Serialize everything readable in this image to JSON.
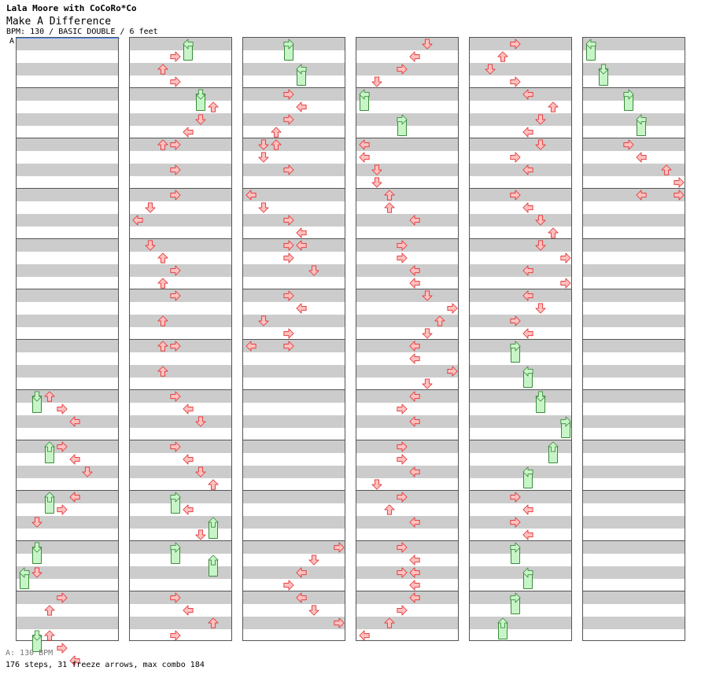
{
  "header": {
    "title": "Lala Moore with CoCoRo*Co",
    "song": "Make A Difference",
    "info": "BPM: 130 / BASIC DOUBLE / 6 feet",
    "bpm_marker": "A"
  },
  "footer": {
    "bpm_line": "A: 130 BPM",
    "stats": "176 steps, 31 freeze arrows, max combo 184"
  },
  "colors": {
    "arrow_fill": "#ffc0c0",
    "arrow_stroke": "#e03030",
    "freeze_fill": "#c8f5c8",
    "freeze_stroke": "#3a8a3a",
    "stripe_gray": "#cccccc",
    "bpm_marker": "#4a8cff"
  },
  "chart": {
    "lanes": [
      "left",
      "down",
      "up",
      "right",
      "left",
      "down",
      "up",
      "right"
    ],
    "measures_per_column": 12,
    "rows_per_measure": 4,
    "columns": [
      [
        [
          28,
          1,
          "f"
        ],
        [
          28,
          2,
          "a"
        ],
        [
          29,
          3,
          "a"
        ],
        [
          30,
          4,
          "a"
        ],
        [
          32,
          2,
          "f"
        ],
        [
          32,
          3,
          "a"
        ],
        [
          33,
          4,
          "a"
        ],
        [
          34,
          5,
          "a"
        ],
        [
          36,
          2,
          "f"
        ],
        [
          36,
          4,
          "a"
        ],
        [
          37,
          3,
          "a"
        ],
        [
          38,
          1,
          "a"
        ],
        [
          40,
          1,
          "f"
        ],
        [
          42,
          0,
          "f"
        ],
        [
          42,
          1,
          "a"
        ],
        [
          44,
          3,
          "a"
        ],
        [
          45,
          2,
          "a"
        ],
        [
          47,
          1,
          "f"
        ],
        [
          47,
          2,
          "a"
        ],
        [
          48,
          3,
          "a"
        ],
        [
          49,
          4,
          "a"
        ]
      ],
      [
        [
          0,
          4,
          "f"
        ],
        [
          1,
          3,
          "a"
        ],
        [
          2,
          2,
          "a"
        ],
        [
          3,
          3,
          "a"
        ],
        [
          4,
          5,
          "f"
        ],
        [
          5,
          6,
          "a"
        ],
        [
          6,
          5,
          "a"
        ],
        [
          7,
          4,
          "a"
        ],
        [
          8,
          2,
          "a"
        ],
        [
          8,
          3,
          "a"
        ],
        [
          10,
          3,
          "a"
        ],
        [
          12,
          3,
          "a"
        ],
        [
          13,
          1,
          "a"
        ],
        [
          14,
          0,
          "a"
        ],
        [
          16,
          1,
          "a"
        ],
        [
          17,
          2,
          "a"
        ],
        [
          18,
          3,
          "a"
        ],
        [
          19,
          2,
          "a"
        ],
        [
          20,
          3,
          "a"
        ],
        [
          22,
          2,
          "a"
        ],
        [
          24,
          2,
          "a"
        ],
        [
          24,
          3,
          "a"
        ],
        [
          26,
          2,
          "a"
        ],
        [
          28,
          3,
          "a"
        ],
        [
          29,
          4,
          "a"
        ],
        [
          30,
          5,
          "a"
        ],
        [
          32,
          3,
          "a"
        ],
        [
          33,
          4,
          "a"
        ],
        [
          34,
          5,
          "a"
        ],
        [
          35,
          6,
          "a"
        ],
        [
          36,
          3,
          "f"
        ],
        [
          37,
          4,
          "a"
        ],
        [
          38,
          6,
          "f"
        ],
        [
          39,
          5,
          "a"
        ],
        [
          40,
          3,
          "f"
        ],
        [
          41,
          6,
          "f"
        ],
        [
          44,
          3,
          "a"
        ],
        [
          45,
          4,
          "a"
        ],
        [
          46,
          6,
          "a"
        ],
        [
          47,
          3,
          "a"
        ]
      ],
      [
        [
          0,
          3,
          "f"
        ],
        [
          2,
          4,
          "f"
        ],
        [
          4,
          3,
          "a"
        ],
        [
          5,
          4,
          "a"
        ],
        [
          6,
          3,
          "a"
        ],
        [
          7,
          2,
          "a"
        ],
        [
          8,
          1,
          "a"
        ],
        [
          8,
          2,
          "a"
        ],
        [
          9,
          1,
          "a"
        ],
        [
          10,
          3,
          "a"
        ],
        [
          12,
          0,
          "a"
        ],
        [
          13,
          1,
          "a"
        ],
        [
          14,
          3,
          "a"
        ],
        [
          15,
          4,
          "a"
        ],
        [
          16,
          3,
          "a"
        ],
        [
          16,
          4,
          "a"
        ],
        [
          17,
          3,
          "a"
        ],
        [
          18,
          5,
          "a"
        ],
        [
          20,
          3,
          "a"
        ],
        [
          21,
          4,
          "a"
        ],
        [
          22,
          1,
          "a"
        ],
        [
          23,
          3,
          "a"
        ],
        [
          24,
          0,
          "a"
        ],
        [
          24,
          3,
          "a"
        ],
        [
          40,
          7,
          "a"
        ],
        [
          41,
          5,
          "a"
        ],
        [
          42,
          4,
          "a"
        ],
        [
          43,
          3,
          "a"
        ],
        [
          44,
          4,
          "a"
        ],
        [
          45,
          5,
          "a"
        ],
        [
          46,
          7,
          "a"
        ]
      ],
      [
        [
          0,
          5,
          "a"
        ],
        [
          1,
          4,
          "a"
        ],
        [
          2,
          3,
          "a"
        ],
        [
          3,
          1,
          "a"
        ],
        [
          4,
          0,
          "f"
        ],
        [
          6,
          3,
          "f"
        ],
        [
          8,
          0,
          "a"
        ],
        [
          9,
          0,
          "a"
        ],
        [
          10,
          1,
          "a"
        ],
        [
          11,
          1,
          "a"
        ],
        [
          12,
          2,
          "a"
        ],
        [
          13,
          2,
          "a"
        ],
        [
          14,
          4,
          "a"
        ],
        [
          16,
          3,
          "a"
        ],
        [
          17,
          3,
          "a"
        ],
        [
          18,
          4,
          "a"
        ],
        [
          19,
          4,
          "a"
        ],
        [
          20,
          5,
          "a"
        ],
        [
          21,
          7,
          "a"
        ],
        [
          22,
          6,
          "a"
        ],
        [
          23,
          5,
          "a"
        ],
        [
          24,
          4,
          "a"
        ],
        [
          25,
          4,
          "a"
        ],
        [
          26,
          7,
          "a"
        ],
        [
          27,
          5,
          "a"
        ],
        [
          28,
          4,
          "a"
        ],
        [
          29,
          3,
          "a"
        ],
        [
          30,
          4,
          "a"
        ],
        [
          32,
          3,
          "a"
        ],
        [
          33,
          3,
          "a"
        ],
        [
          34,
          4,
          "a"
        ],
        [
          35,
          1,
          "a"
        ],
        [
          36,
          3,
          "a"
        ],
        [
          37,
          2,
          "a"
        ],
        [
          38,
          4,
          "a"
        ],
        [
          40,
          3,
          "a"
        ],
        [
          41,
          4,
          "a"
        ],
        [
          42,
          3,
          "a"
        ],
        [
          42,
          4,
          "a"
        ],
        [
          43,
          4,
          "a"
        ],
        [
          44,
          4,
          "a"
        ],
        [
          45,
          3,
          "a"
        ],
        [
          46,
          2,
          "a"
        ],
        [
          47,
          0,
          "a"
        ]
      ],
      [
        [
          0,
          3,
          "a"
        ],
        [
          1,
          2,
          "a"
        ],
        [
          2,
          1,
          "a"
        ],
        [
          3,
          3,
          "a"
        ],
        [
          4,
          4,
          "a"
        ],
        [
          5,
          6,
          "a"
        ],
        [
          6,
          5,
          "a"
        ],
        [
          7,
          4,
          "a"
        ],
        [
          8,
          5,
          "a"
        ],
        [
          9,
          3,
          "a"
        ],
        [
          10,
          4,
          "a"
        ],
        [
          12,
          3,
          "a"
        ],
        [
          13,
          4,
          "a"
        ],
        [
          14,
          5,
          "a"
        ],
        [
          15,
          6,
          "a"
        ],
        [
          16,
          5,
          "a"
        ],
        [
          17,
          7,
          "a"
        ],
        [
          18,
          4,
          "a"
        ],
        [
          19,
          7,
          "a"
        ],
        [
          20,
          4,
          "a"
        ],
        [
          21,
          5,
          "a"
        ],
        [
          22,
          3,
          "a"
        ],
        [
          23,
          4,
          "a"
        ],
        [
          24,
          3,
          "f"
        ],
        [
          26,
          4,
          "f"
        ],
        [
          28,
          5,
          "f"
        ],
        [
          30,
          7,
          "f"
        ],
        [
          32,
          6,
          "f"
        ],
        [
          34,
          4,
          "f"
        ],
        [
          36,
          3,
          "a"
        ],
        [
          37,
          4,
          "a"
        ],
        [
          38,
          3,
          "a"
        ],
        [
          39,
          4,
          "a"
        ],
        [
          40,
          3,
          "f"
        ],
        [
          42,
          4,
          "f"
        ],
        [
          44,
          3,
          "f"
        ],
        [
          46,
          2,
          "f"
        ]
      ],
      [
        [
          0,
          0,
          "f"
        ],
        [
          2,
          1,
          "f"
        ],
        [
          4,
          3,
          "f"
        ],
        [
          6,
          4,
          "f"
        ],
        [
          8,
          3,
          "a"
        ],
        [
          9,
          4,
          "a"
        ],
        [
          10,
          6,
          "a"
        ],
        [
          11,
          7,
          "a"
        ],
        [
          12,
          4,
          "a"
        ],
        [
          12,
          7,
          "a"
        ]
      ]
    ]
  }
}
